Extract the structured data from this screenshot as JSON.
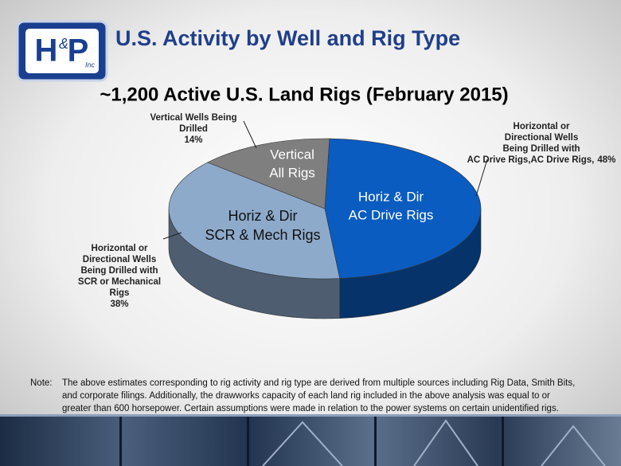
{
  "header": {
    "title": "U.S. Activity by Well and Rig Type",
    "logo": {
      "letters": [
        "H",
        "P"
      ],
      "amp": "&",
      "inc": "Inc"
    }
  },
  "chart_data": {
    "type": "pie",
    "title": "~1,200 Active U.S. Land Rigs (February 2015)",
    "slice_labels": [
      [
        "Horiz & Dir",
        "AC Drive Rigs"
      ],
      [
        "Horiz & Dir",
        "SCR & Mech Rigs"
      ],
      [
        "Vertical",
        "All Rigs"
      ]
    ],
    "callouts": [
      [
        "Horizontal or",
        "Directional Wells",
        "Being Drilled with",
        "AC Drive Rigs,"
      ],
      [
        "Horizontal or",
        "Directional Wells",
        "Being Drilled with",
        "SCR or Mechanical",
        "Rigs"
      ],
      [
        "Vertical Wells Being",
        "Drilled"
      ]
    ],
    "values": [
      48,
      38,
      14
    ],
    "value_labels": [
      "48%",
      "38%",
      "14%"
    ],
    "colors": [
      "#0a5cc0",
      "#8eaacb",
      "#7f7f7f"
    ]
  },
  "note": {
    "label": "Note:",
    "lines": [
      "The above estimates corresponding to rig activity and rig type are derived from multiple sources including Rig Data, Smith Bits,",
      "and corporate filings.  Additionally, the drawworks capacity of each land rig included in the above analysis was equal to or",
      "greater than 600 horsepower. Certain assumptions were made in relation to the power systems on certain unidentified rigs."
    ]
  }
}
